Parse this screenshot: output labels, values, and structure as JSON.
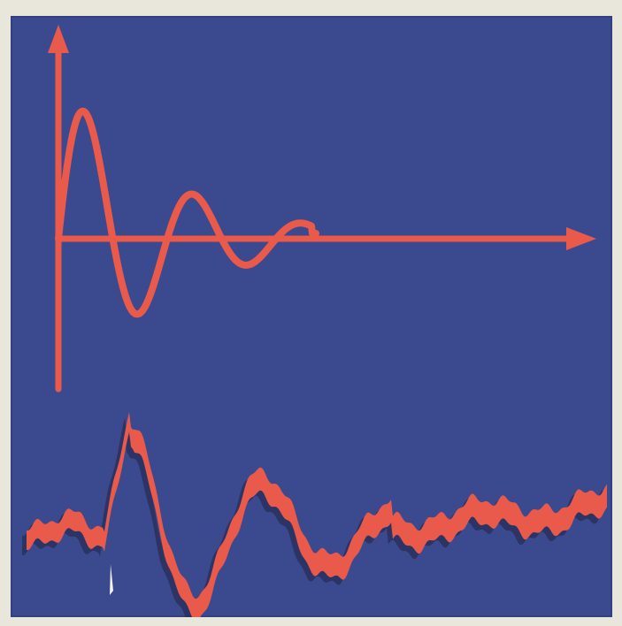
{
  "diagram": {
    "colors": {
      "background": "#3b4a8f",
      "frame": "#e9e6dc",
      "curve": "#ea5a4a",
      "noise_band": "#ea5a4a",
      "shadow": "#1f2242"
    },
    "elements": {
      "upper": "damped-oscillation",
      "lower": "noisy-oscillation-signal"
    }
  }
}
